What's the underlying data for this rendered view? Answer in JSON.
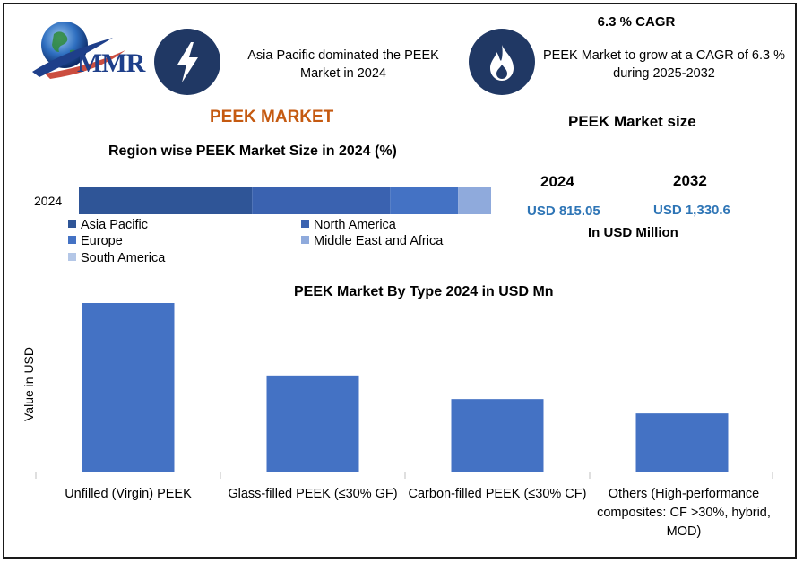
{
  "brand": {
    "logo_text": "MMR",
    "logo_icon": "globe-icon"
  },
  "header": {
    "info1": {
      "icon": "lightning-icon",
      "text": "Asia Pacific dominated the PEEK Market in 2024"
    },
    "info2": {
      "icon": "flame-icon",
      "title": "6.3 % CAGR",
      "text": "PEEK Market to grow at a CAGR of 6.3 % during 2025-2032"
    }
  },
  "market_title": "PEEK MARKET",
  "market_size": {
    "title": "PEEK Market size",
    "year1": "2024",
    "value1": "USD 815.05",
    "year2": "2032",
    "value2": "USD 1,330.6",
    "unit": "In USD Million"
  },
  "colors": {
    "dark_navy": "#203864",
    "accent_orange": "#c55a11",
    "value_blue": "#2e75b6",
    "bar_blue": "#4472c4"
  },
  "chart_data": [
    {
      "type": "bar",
      "orientation": "horizontal",
      "stacked": true,
      "title": "Region wise PEEK Market Size in 2024 (%)",
      "categories": [
        "2024"
      ],
      "series": [
        {
          "name": "Asia Pacific",
          "values": [
            42
          ],
          "color": "#2f5597"
        },
        {
          "name": "North America",
          "values": [
            33.5
          ],
          "color": "#3a62b0"
        },
        {
          "name": "Europe",
          "values": [
            16.5
          ],
          "color": "#4472c4"
        },
        {
          "name": "Middle East and Africa",
          "values": [
            8
          ],
          "color": "#8faadc"
        },
        {
          "name": "South America",
          "values": [
            0
          ],
          "color": "#b4c7e7"
        }
      ],
      "xlim": [
        0,
        100
      ],
      "grid": false,
      "legend": "bottom"
    },
    {
      "type": "bar",
      "title": "PEEK Market By Type 2024 in USD Mn",
      "categories": [
        "Unfilled (Virgin) PEEK",
        "Glass-filled PEEK (≤30% GF)",
        "Carbon-filled PEEK (≤30% CF)",
        "Others (High-performance composites: CF >30%, hybrid, MOD)"
      ],
      "values": [
        100,
        57,
        43,
        34.5
      ],
      "ylabel": "Value in USD",
      "ylim": [
        0,
        100
      ],
      "color": "#4472c4",
      "grid": false
    }
  ]
}
